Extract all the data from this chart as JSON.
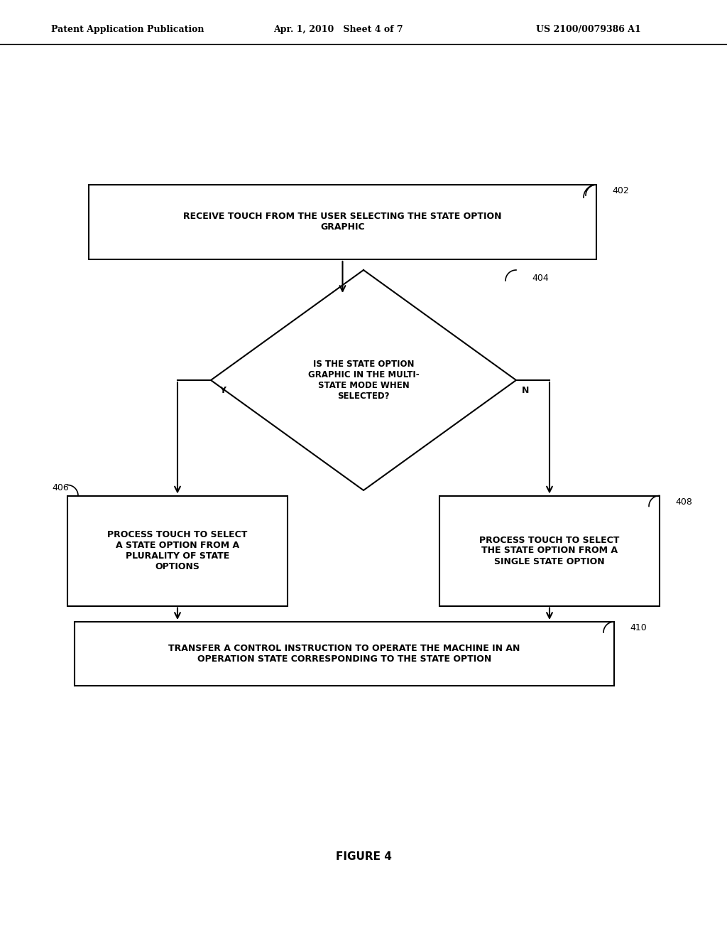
{
  "bg_color": "#ffffff",
  "text_color": "#000000",
  "header_left": "Patent Application Publication",
  "header_center": "Apr. 1, 2010   Sheet 4 of 7",
  "header_right": "US 2100/0079386 A1",
  "figure_caption": "FIGURE 4",
  "box402_text": "RECEIVE TOUCH FROM THE USER SELECTING THE STATE OPTION\nGRAPHIC",
  "box402_label": "402",
  "diamond404_text": "IS THE STATE OPTION\nGRAPHIC IN THE MULTI-\nSTATE MODE WHEN\nSELECTED?",
  "diamond404_label": "404",
  "box406_text": "PROCESS TOUCH TO SELECT\nA STATE OPTION FROM A\nPLURALITY OF STATE\nOPTIONS",
  "box406_label": "406",
  "box408_text": "PROCESS TOUCH TO SELECT\nTHE STATE OPTION FROM A\nSINGLE STATE OPTION",
  "box408_label": "408",
  "box410_text": "TRANSFER A CONTROL INSTRUCTION TO OPERATE THE MACHINE IN AN\nOPERATION STATE CORRESPONDING TO THE STATE OPTION",
  "box410_label": "410",
  "y_label": "Y",
  "n_label": "N"
}
